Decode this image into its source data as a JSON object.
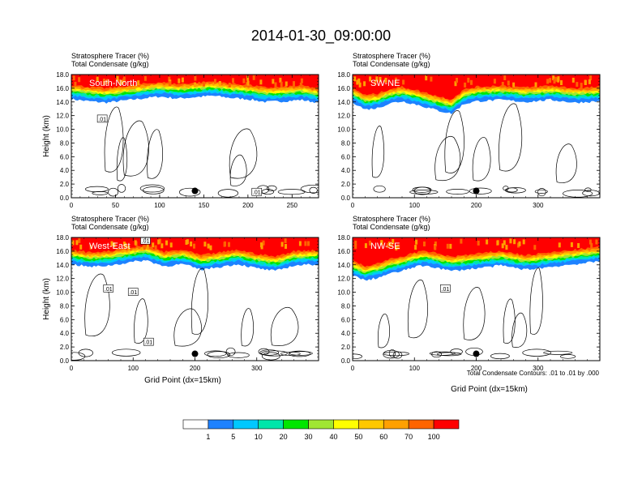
{
  "page": {
    "title": "2014-01-30_09:00:00",
    "footnote": "Total Condensate Contours: .01 to .01 by .000"
  },
  "palette": {
    "levels": [
      "1",
      "5",
      "10",
      "20",
      "30",
      "40",
      "50",
      "60",
      "70",
      "100"
    ],
    "colors": [
      "#ffffff",
      "#1e82ff",
      "#00c8ff",
      "#00e6aa",
      "#00e600",
      "#a0e632",
      "#ffff00",
      "#ffc800",
      "#ffa000",
      "#ff6400",
      "#ff0000"
    ]
  },
  "chart_data": [
    {
      "type": "heatmap",
      "id": "south-north",
      "header_line1": "Stratosphere Tracer   (%)",
      "header_line2": "Total Condensate   (g/kg)",
      "panel_label": "South-North",
      "ylabel": "Height (km)",
      "xlabel": "",
      "xlim": [
        0,
        280
      ],
      "ylim": [
        0,
        18
      ],
      "xticks": [
        0,
        50,
        100,
        150,
        200,
        250
      ],
      "xticklabels": [
        "0",
        "50",
        "100",
        "150",
        "200",
        "250"
      ],
      "yticks": [
        0,
        2,
        4,
        6,
        8,
        10,
        12,
        14,
        16,
        18
      ],
      "yticklabels": [
        "0.0",
        "2.0",
        "4.0",
        "6.0",
        "8.0",
        "10.0",
        "12.0",
        "14.0",
        "16.0",
        "18.0"
      ],
      "marker": {
        "x": 140,
        "y": 1.0
      },
      "contour_labels": [
        {
          "text": ".01",
          "x": 35,
          "y": 11.5
        },
        {
          "text": ".01",
          "x": 210,
          "y": 0.8
        }
      ],
      "tropopause_profile": [
        {
          "x": 0,
          "y": 14.9
        },
        {
          "x": 20,
          "y": 14.6
        },
        {
          "x": 40,
          "y": 14.4
        },
        {
          "x": 60,
          "y": 14.7
        },
        {
          "x": 80,
          "y": 15.0
        },
        {
          "x": 100,
          "y": 15.3
        },
        {
          "x": 120,
          "y": 15.0
        },
        {
          "x": 140,
          "y": 15.2
        },
        {
          "x": 160,
          "y": 15.4
        },
        {
          "x": 180,
          "y": 15.1
        },
        {
          "x": 200,
          "y": 14.9
        },
        {
          "x": 220,
          "y": 14.5
        },
        {
          "x": 240,
          "y": 14.6
        },
        {
          "x": 260,
          "y": 14.8
        },
        {
          "x": 280,
          "y": 14.4
        }
      ]
    },
    {
      "type": "heatmap",
      "id": "sw-ne",
      "header_line1": "Stratosphere Tracer   (%)",
      "header_line2": "Total Condensate   (g/kg)",
      "panel_label": "SW-NE",
      "ylabel": "",
      "xlabel": "",
      "xlim": [
        0,
        400
      ],
      "ylim": [
        0,
        18
      ],
      "xticks": [
        0,
        100,
        200,
        300
      ],
      "xticklabels": [
        "0",
        "100",
        "200",
        "300"
      ],
      "yticks": [
        0,
        2,
        4,
        6,
        8,
        10,
        12,
        14,
        16,
        18
      ],
      "yticklabels": [
        "0.0",
        "2.0",
        "4.0",
        "6.0",
        "8.0",
        "10.0",
        "12.0",
        "14.0",
        "16.0",
        "18.0"
      ],
      "marker": {
        "x": 200,
        "y": 1.0
      },
      "contour_labels": [],
      "tropopause_profile": [
        {
          "x": 0,
          "y": 14.5
        },
        {
          "x": 20,
          "y": 13.4
        },
        {
          "x": 40,
          "y": 13.6
        },
        {
          "x": 60,
          "y": 14.3
        },
        {
          "x": 80,
          "y": 14.6
        },
        {
          "x": 100,
          "y": 14.2
        },
        {
          "x": 120,
          "y": 13.7
        },
        {
          "x": 140,
          "y": 13.2
        },
        {
          "x": 160,
          "y": 12.8
        },
        {
          "x": 180,
          "y": 14.2
        },
        {
          "x": 200,
          "y": 14.6
        },
        {
          "x": 240,
          "y": 14.8
        },
        {
          "x": 280,
          "y": 14.5
        },
        {
          "x": 320,
          "y": 14.8
        },
        {
          "x": 360,
          "y": 14.4
        },
        {
          "x": 400,
          "y": 14.6
        }
      ]
    },
    {
      "type": "heatmap",
      "id": "west-east",
      "header_line1": "Stratosphere Tracer   (%)",
      "header_line2": "Total Condensate   (g/kg)",
      "panel_label": "West-East",
      "ylabel": "Height (km)",
      "xlabel": "Grid Point (dx=15km)",
      "xlim": [
        0,
        400
      ],
      "ylim": [
        0,
        18
      ],
      "xticks": [
        0,
        100,
        200,
        300
      ],
      "xticklabels": [
        "0",
        "100",
        "200",
        "300"
      ],
      "yticks": [
        0,
        2,
        4,
        6,
        8,
        10,
        12,
        14,
        16,
        18
      ],
      "yticklabels": [
        "0.0",
        "2.0",
        "4.0",
        "6.0",
        "8.0",
        "10.0",
        "12.0",
        "14.0",
        "16.0",
        "18.0"
      ],
      "marker": {
        "x": 200,
        "y": 1.0
      },
      "contour_labels": [
        {
          "text": ".01",
          "x": 120,
          "y": 17.5
        },
        {
          "text": ".01",
          "x": 60,
          "y": 10.5
        },
        {
          "text": ".01",
          "x": 100,
          "y": 10.0
        },
        {
          "text": ".01",
          "x": 125,
          "y": 2.7
        }
      ],
      "tropopause_profile": [
        {
          "x": 0,
          "y": 14.6
        },
        {
          "x": 30,
          "y": 14.2
        },
        {
          "x": 60,
          "y": 14.4
        },
        {
          "x": 90,
          "y": 14.8
        },
        {
          "x": 120,
          "y": 15.2
        },
        {
          "x": 150,
          "y": 14.3
        },
        {
          "x": 180,
          "y": 14.6
        },
        {
          "x": 210,
          "y": 13.8
        },
        {
          "x": 240,
          "y": 14.2
        },
        {
          "x": 270,
          "y": 14.6
        },
        {
          "x": 300,
          "y": 14.0
        },
        {
          "x": 330,
          "y": 13.6
        },
        {
          "x": 360,
          "y": 14.4
        },
        {
          "x": 400,
          "y": 14.6
        }
      ]
    },
    {
      "type": "heatmap",
      "id": "nw-se",
      "header_line1": "Stratosphere Tracer   (%)",
      "header_line2": "Total Condensate   (g/kg)",
      "panel_label": "NW-SE",
      "ylabel": "",
      "xlabel": "Grid Point (dx=15km)",
      "xlim": [
        0,
        400
      ],
      "ylim": [
        0,
        18
      ],
      "xticks": [
        0,
        100,
        200,
        300
      ],
      "xticklabels": [
        "0",
        "100",
        "200",
        "300"
      ],
      "yticks": [
        0,
        2,
        4,
        6,
        8,
        10,
        12,
        14,
        16,
        18
      ],
      "yticklabels": [
        "0.0",
        "2.0",
        "4.0",
        "6.0",
        "8.0",
        "10.0",
        "12.0",
        "14.0",
        "16.0",
        "18.0"
      ],
      "marker": {
        "x": 200,
        "y": 1.0
      },
      "contour_labels": [
        {
          "text": ".01",
          "x": 150,
          "y": 10.5
        }
      ],
      "tropopause_profile": [
        {
          "x": 0,
          "y": 13.0
        },
        {
          "x": 20,
          "y": 12.2
        },
        {
          "x": 40,
          "y": 12.6
        },
        {
          "x": 60,
          "y": 13.2
        },
        {
          "x": 80,
          "y": 13.6
        },
        {
          "x": 100,
          "y": 14.2
        },
        {
          "x": 120,
          "y": 14.4
        },
        {
          "x": 140,
          "y": 14.0
        },
        {
          "x": 160,
          "y": 13.6
        },
        {
          "x": 200,
          "y": 14.0
        },
        {
          "x": 240,
          "y": 14.4
        },
        {
          "x": 280,
          "y": 13.8
        },
        {
          "x": 320,
          "y": 14.2
        },
        {
          "x": 360,
          "y": 14.6
        },
        {
          "x": 400,
          "y": 15.0
        }
      ]
    }
  ]
}
